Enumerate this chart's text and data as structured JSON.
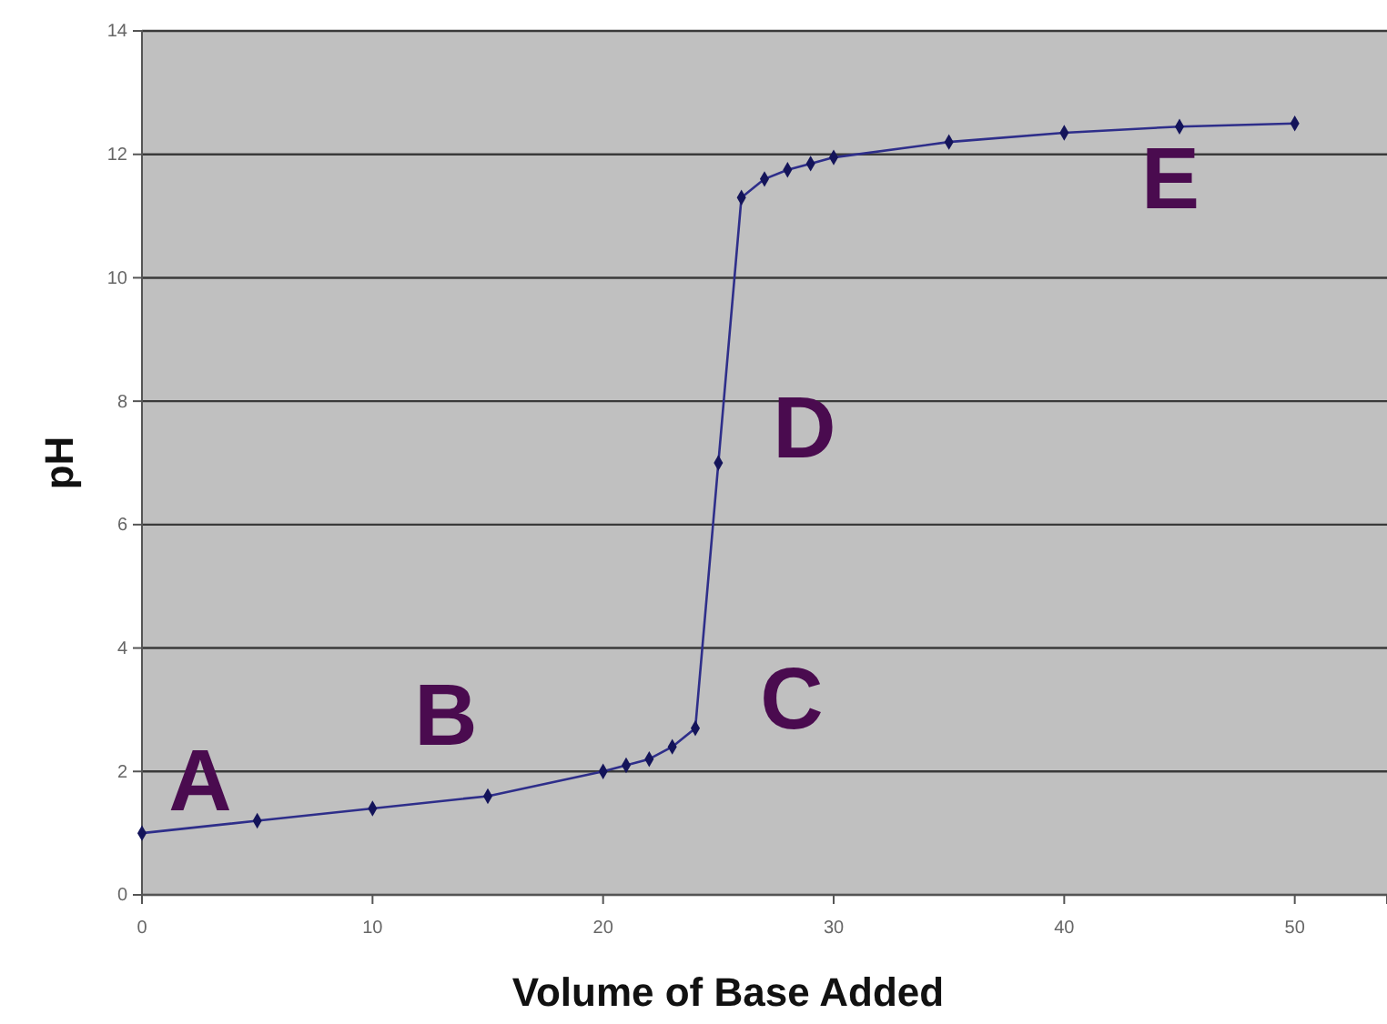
{
  "chart_data": {
    "type": "line",
    "xlabel": "Volume of Base Added",
    "ylabel": "pH",
    "x": [
      0,
      5,
      10,
      15,
      20,
      21,
      22,
      23,
      24,
      25,
      26,
      27,
      28,
      29,
      30,
      35,
      40,
      45,
      50
    ],
    "series": [
      {
        "color": "#2e2e8a",
        "values": [
          1,
          1.2,
          1.4,
          1.6,
          2.0,
          2.1,
          2.2,
          2.4,
          2.7,
          7.0,
          11.3,
          11.6,
          11.75,
          11.85,
          11.95,
          12.2,
          12.35,
          12.45,
          12.5
        ]
      }
    ],
    "xlim": [
      0,
      54
    ],
    "ylim": [
      0,
      14
    ],
    "xticks": [
      0,
      10,
      20,
      30,
      40,
      50
    ],
    "yticks": [
      0,
      2,
      4,
      6,
      8,
      10,
      12,
      14
    ],
    "grid": "y",
    "marker": "diamond",
    "line_style": "solid",
    "annotations": [
      "A",
      "B",
      "C",
      "D",
      "E"
    ]
  }
}
